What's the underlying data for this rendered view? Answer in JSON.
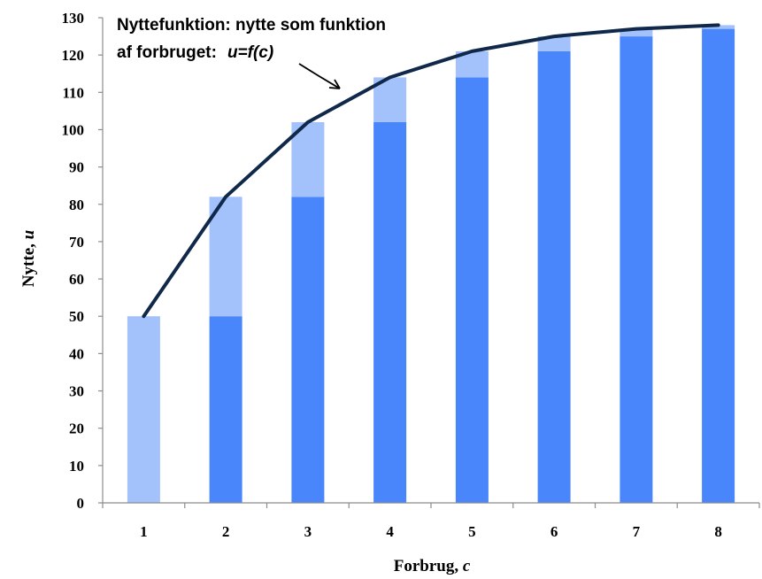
{
  "chart_data": {
    "type": "bar",
    "categories": [
      "1",
      "2",
      "3",
      "4",
      "5",
      "6",
      "7",
      "8"
    ],
    "series": [
      {
        "values": [
          0,
          50,
          82,
          102,
          114,
          121,
          125,
          127
        ],
        "color": "#4a86fb"
      },
      {
        "values": [
          50,
          32,
          20,
          12,
          7,
          4,
          2,
          1
        ],
        "color": "#a3c2fb"
      }
    ],
    "line": {
      "x": [
        1,
        2,
        3,
        4,
        5,
        6,
        7,
        8
      ],
      "y": [
        50,
        82,
        102,
        114,
        121,
        125,
        127,
        128
      ],
      "color": "#10294a"
    },
    "stacked": true,
    "ylim": [
      0,
      130
    ],
    "yticks": [
      0,
      10,
      20,
      30,
      40,
      50,
      60,
      70,
      80,
      90,
      100,
      110,
      120,
      130
    ],
    "xlabel": {
      "text": "Forbrug, ",
      "var": "c"
    },
    "ylabel": {
      "text": "Nytte, ",
      "var": "u"
    },
    "annotation": {
      "line1": "Nyttefunktion: nytte som funktion",
      "line2": "af forbruget:",
      "formula": "u=f(c)"
    },
    "grid": false,
    "legend": "none"
  }
}
